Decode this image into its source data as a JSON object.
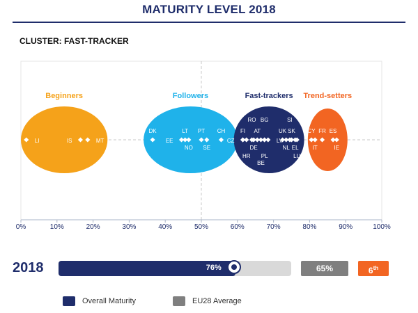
{
  "page_title": "MATURITY LEVEL 2018",
  "cluster_label": "CLUSTER: FAST-TRACKER",
  "colors": {
    "navy": "#1f2d6b",
    "beginners": "#f5a21a",
    "followers": "#1fb2ea",
    "fast_trackers": "#1f2d6b",
    "trend_setters": "#f26522",
    "eu_gray": "#7f7f7f"
  },
  "chart_data": {
    "type": "scatter",
    "xlim": [
      0,
      100
    ],
    "x_ticks": [
      "0%",
      "10%",
      "20%",
      "30%",
      "40%",
      "50%",
      "60%",
      "70%",
      "80%",
      "90%",
      "100%"
    ],
    "grid": false,
    "clusters": [
      {
        "name": "Beginners",
        "x_min": 0,
        "x_max": 24,
        "color": "#f5a21a"
      },
      {
        "name": "Followers",
        "x_min": 34,
        "x_max": 60,
        "color": "#1fb2ea"
      },
      {
        "name": "Fast-trackers",
        "x_min": 59,
        "x_max": 78.5,
        "color": "#1f2d6b"
      },
      {
        "name": "Trend-setters",
        "x_min": 79.5,
        "x_max": 90.5,
        "color": "#f26522"
      }
    ],
    "points": [
      {
        "label": "LI",
        "x": 1.5,
        "pos": "right"
      },
      {
        "label": "IS",
        "x": 16.5,
        "pos": "left"
      },
      {
        "label": "MT",
        "x": 18.5,
        "pos": "right"
      },
      {
        "label": "DK",
        "x": 36.5,
        "pos": "up"
      },
      {
        "label": "EE",
        "x": 44.5,
        "pos": "left"
      },
      {
        "label": "LT",
        "x": 45.5,
        "pos": "up"
      },
      {
        "label": "NO",
        "x": 46.5,
        "pos": "down"
      },
      {
        "label": "PT",
        "x": 50.0,
        "pos": "up"
      },
      {
        "label": "SE",
        "x": 51.5,
        "pos": "down"
      },
      {
        "label": "CH",
        "x": 55.5,
        "pos": "up"
      },
      {
        "label": "CZ",
        "x": 61.5,
        "pos": "left"
      },
      {
        "label": "FI",
        "x": 61.5,
        "pos": "up"
      },
      {
        "label": "HR",
        "x": 62.5,
        "pos": "down2"
      },
      {
        "label": "RO",
        "x": 64.0,
        "pos": "up2"
      },
      {
        "label": "DE",
        "x": 64.5,
        "pos": "down"
      },
      {
        "label": "AT",
        "x": 65.5,
        "pos": "up"
      },
      {
        "label": "BE",
        "x": 66.5,
        "pos": "down3"
      },
      {
        "label": "BG",
        "x": 67.5,
        "pos": "up2"
      },
      {
        "label": "PL",
        "x": 67.5,
        "pos": "down2"
      },
      {
        "label": "LV",
        "x": 68.5,
        "pos": "right"
      },
      {
        "label": "UK",
        "x": 72.5,
        "pos": "up"
      },
      {
        "label": "NL",
        "x": 73.5,
        "pos": "down"
      },
      {
        "label": "SI",
        "x": 74.5,
        "pos": "up2"
      },
      {
        "label": "SK",
        "x": 75.0,
        "pos": "up"
      },
      {
        "label": "EL",
        "x": 76.0,
        "pos": "down"
      },
      {
        "label": "LU",
        "x": 76.5,
        "pos": "down2"
      },
      {
        "label": "CY",
        "x": 80.5,
        "pos": "up"
      },
      {
        "label": "IT",
        "x": 81.5,
        "pos": "down"
      },
      {
        "label": "FR",
        "x": 83.5,
        "pos": "up"
      },
      {
        "label": "ES",
        "x": 86.5,
        "pos": "up"
      },
      {
        "label": "IE",
        "x": 87.5,
        "pos": "down"
      }
    ]
  },
  "summary": {
    "year": "2018",
    "overall_maturity": 76,
    "overall_label": "76%",
    "eu_average": 65,
    "eu_label": "65%",
    "rank_number": "6",
    "rank_suffix": "th"
  },
  "legend": [
    {
      "label": "Overall Maturity",
      "color": "#1f2d6b"
    },
    {
      "label": "EU28 Average",
      "color": "#7f7f7f"
    }
  ]
}
